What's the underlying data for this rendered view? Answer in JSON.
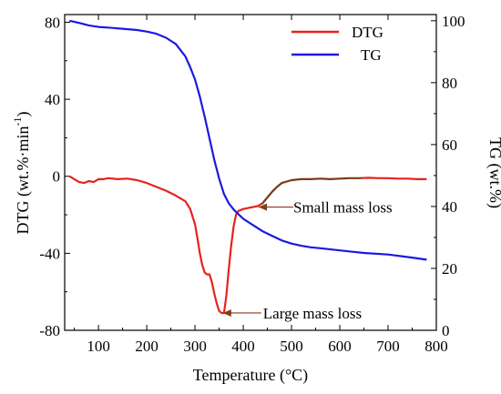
{
  "chart_data": {
    "type": "line",
    "xlabel": "Temperature (°C)",
    "ylabel_left": "DTG (wt.%·min",
    "ylabel_left_sup": "-1",
    "ylabel_left_close": ")",
    "ylabel_right": "TG (wt.%)",
    "xlim": [
      30,
      800
    ],
    "ylim_left": [
      -80,
      84
    ],
    "ylim_right": [
      0,
      102
    ],
    "x_ticks": [
      100,
      200,
      300,
      400,
      500,
      600,
      700,
      800
    ],
    "y_left_ticks": [
      -80,
      -40,
      0,
      40,
      80
    ],
    "y_right_ticks": [
      0,
      20,
      40,
      60,
      80,
      100
    ],
    "legend_position": "top-right",
    "series": [
      {
        "name": "DTG",
        "axis": "left",
        "color": "#e8221a",
        "x": [
          40,
          50,
          60,
          70,
          80,
          90,
          100,
          110,
          120,
          140,
          160,
          180,
          200,
          220,
          240,
          260,
          280,
          290,
          300,
          305,
          310,
          315,
          320,
          325,
          330,
          335,
          340,
          345,
          350,
          355,
          360,
          365,
          370,
          375,
          380,
          385,
          390,
          395,
          400,
          410,
          420,
          430,
          440,
          450,
          460,
          470,
          480,
          500,
          520,
          540,
          560,
          580,
          600,
          620,
          640,
          660,
          680,
          700,
          720,
          740,
          760,
          780
        ],
        "y": [
          0,
          -1.5,
          -3,
          -3.5,
          -2.5,
          -3,
          -1.5,
          -1.5,
          -1,
          -1.5,
          -1.2,
          -2,
          -3.5,
          -5.5,
          -7.5,
          -10,
          -13,
          -17,
          -25,
          -32,
          -40,
          -46,
          -50,
          -51,
          -51,
          -55,
          -61,
          -66,
          -70,
          -71,
          -71,
          -62,
          -48,
          -36,
          -26,
          -20,
          -18,
          -17.5,
          -17,
          -16.5,
          -16,
          -15.5,
          -14,
          -11,
          -8,
          -5.5,
          -3.5,
          -2,
          -1.5,
          -1.5,
          -1.2,
          -1.5,
          -1.2,
          -1,
          -1,
          -0.8,
          -1,
          -1,
          -1.2,
          -1.2,
          -1.5,
          -1.5
        ]
      },
      {
        "name": "TG",
        "axis": "right",
        "color": "#1a1ae0",
        "x": [
          40,
          60,
          80,
          100,
          120,
          150,
          180,
          200,
          220,
          240,
          260,
          280,
          290,
          300,
          310,
          320,
          330,
          340,
          350,
          360,
          370,
          380,
          390,
          400,
          420,
          440,
          460,
          480,
          500,
          520,
          540,
          560,
          600,
          650,
          700,
          750,
          780
        ],
        "y": [
          100,
          99.3,
          98.5,
          98,
          97.8,
          97.4,
          97,
          96.5,
          95.8,
          94.5,
          92.5,
          88.5,
          85,
          81,
          75.5,
          69,
          62,
          55,
          49,
          44,
          41,
          39,
          37.5,
          36,
          34,
          32,
          30.5,
          29,
          28,
          27.3,
          26.8,
          26.5,
          25.8,
          25,
          24.5,
          23.5,
          22.8
        ]
      }
    ],
    "annotations": [
      {
        "text": "Small mass loss",
        "x": 432,
        "y": -16
      },
      {
        "text": "Large mass loss",
        "x": 358,
        "y": -71
      }
    ]
  },
  "colors": {
    "dtg_red": "#e8221a",
    "dtg_brown": "#7a3a14",
    "tg_blue": "#1a1ae0",
    "annotation_arrow": "#8a3a14"
  }
}
